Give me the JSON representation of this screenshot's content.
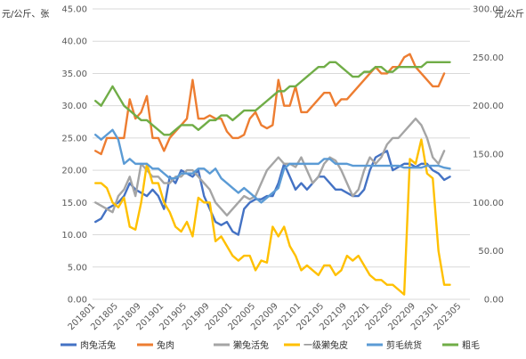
{
  "chart_data": {
    "type": "line",
    "left_axis_unit": "元/公斤、张",
    "right_axis_unit": "元/公斤",
    "y_left_ticks": [
      "0.00",
      "5.00",
      "10.00",
      "15.00",
      "20.00",
      "25.00",
      "30.00",
      "35.00",
      "40.00",
      "45.00"
    ],
    "y_right_ticks": [
      "0.00",
      "50.00",
      "100.00",
      "150.00",
      "200.00",
      "250.00",
      "300.00"
    ],
    "ylim_left": [
      0,
      45
    ],
    "ylim_right": [
      0,
      300
    ],
    "x_tick_labels": [
      "201801",
      "201805",
      "201809",
      "201901",
      "201905",
      "201909",
      "202001",
      "202005",
      "202009",
      "202101",
      "202105",
      "202109",
      "202201",
      "202205",
      "202209",
      "202301",
      "202305"
    ],
    "x_tick_months": [
      0,
      4,
      8,
      12,
      16,
      20,
      24,
      28,
      32,
      36,
      40,
      44,
      48,
      52,
      56,
      60,
      64
    ],
    "month_count": 66,
    "grid": true,
    "legend_position": "bottom",
    "series": [
      {
        "name": "肉兔活兔",
        "axis": "left",
        "color": "#4472c4",
        "values": [
          12,
          12.5,
          14,
          14.5,
          15,
          16,
          18,
          17,
          16.5,
          16,
          17,
          16,
          14,
          19,
          18,
          20,
          19.5,
          19,
          20,
          16,
          14,
          12,
          11.5,
          12,
          10.5,
          10,
          14,
          15,
          15.5,
          15.5,
          16,
          16,
          18,
          21,
          19,
          17,
          18,
          17,
          18,
          19,
          19,
          18,
          17,
          17,
          16.5,
          16,
          16,
          17,
          20,
          22,
          22.5,
          23,
          20,
          20.5,
          21,
          21,
          20.5,
          21,
          21,
          20,
          19.5,
          18.5,
          19
        ]
      },
      {
        "name": "兔肉",
        "axis": "left",
        "color": "#ed7d31",
        "values": [
          23,
          22.5,
          25,
          25,
          25,
          25,
          31,
          28,
          29,
          31.5,
          25,
          25,
          23,
          25,
          26,
          27,
          28,
          34,
          28,
          28,
          28.5,
          28,
          28,
          26,
          25,
          25,
          25.5,
          28,
          29,
          27,
          26.5,
          27,
          34,
          30,
          30,
          33,
          29,
          29,
          30,
          31,
          32,
          32,
          30,
          31,
          31,
          32,
          33,
          34,
          35,
          36,
          35,
          35,
          36,
          36,
          37.5,
          38,
          36,
          35,
          34,
          33,
          33,
          35
        ]
      },
      {
        "name": "獭兔活兔",
        "axis": "left",
        "color": "#a5a5a5",
        "values": [
          15,
          14.5,
          14,
          13.5,
          16,
          17,
          19,
          16,
          21,
          20,
          19,
          19,
          18,
          18,
          19,
          19,
          20,
          20,
          19,
          18,
          17,
          15,
          14,
          13,
          14,
          15,
          16,
          15.5,
          16,
          18,
          20,
          21,
          22,
          21,
          21,
          20.5,
          22,
          20,
          18,
          19,
          21,
          22,
          21.5,
          20,
          18,
          16,
          17,
          20,
          22,
          21,
          22,
          24,
          25,
          25,
          26,
          27,
          28,
          27,
          25,
          22,
          21,
          23
        ]
      },
      {
        "name": "一级獭兔皮",
        "axis": "right",
        "color": "#ffc000",
        "values": [
          120,
          120,
          115,
          100,
          95,
          105,
          75,
          72,
          100,
          140,
          120,
          120,
          100,
          90,
          75,
          70,
          80,
          65,
          105,
          100,
          100,
          60,
          65,
          55,
          45,
          40,
          45,
          45,
          30,
          40,
          38,
          75,
          65,
          75,
          55,
          45,
          30,
          35,
          30,
          25,
          35,
          35,
          25,
          30,
          45,
          40,
          45,
          35,
          25,
          20,
          20,
          15,
          15,
          10,
          5,
          145,
          140,
          165,
          130,
          125,
          50,
          15,
          15
        ]
      },
      {
        "name": "剪毛统货",
        "axis": "right",
        "color": "#5b9bd5",
        "values": [
          170,
          165,
          170,
          175,
          165,
          140,
          145,
          140,
          140,
          140,
          135,
          135,
          130,
          125,
          125,
          130,
          130,
          130,
          135,
          135,
          130,
          135,
          125,
          120,
          115,
          110,
          115,
          110,
          105,
          100,
          105,
          110,
          115,
          135,
          140,
          140,
          140,
          140,
          140,
          140,
          145,
          145,
          140,
          140,
          140,
          138,
          138,
          138,
          138,
          138,
          138,
          138,
          138,
          138,
          136,
          136,
          136,
          136,
          138,
          138,
          138,
          136,
          135
        ]
      },
      {
        "name": "粗毛",
        "axis": "right",
        "color": "#70ad47",
        "values": [
          205,
          200,
          210,
          220,
          210,
          200,
          195,
          190,
          185,
          185,
          180,
          175,
          170,
          170,
          175,
          180,
          180,
          180,
          175,
          180,
          185,
          185,
          190,
          190,
          185,
          190,
          195,
          195,
          195,
          200,
          205,
          210,
          215,
          215,
          220,
          220,
          225,
          230,
          235,
          240,
          240,
          245,
          245,
          240,
          235,
          230,
          230,
          235,
          235,
          240,
          240,
          235,
          235,
          240,
          240,
          240,
          240,
          240,
          245,
          245,
          245,
          245,
          245
        ]
      }
    ]
  }
}
